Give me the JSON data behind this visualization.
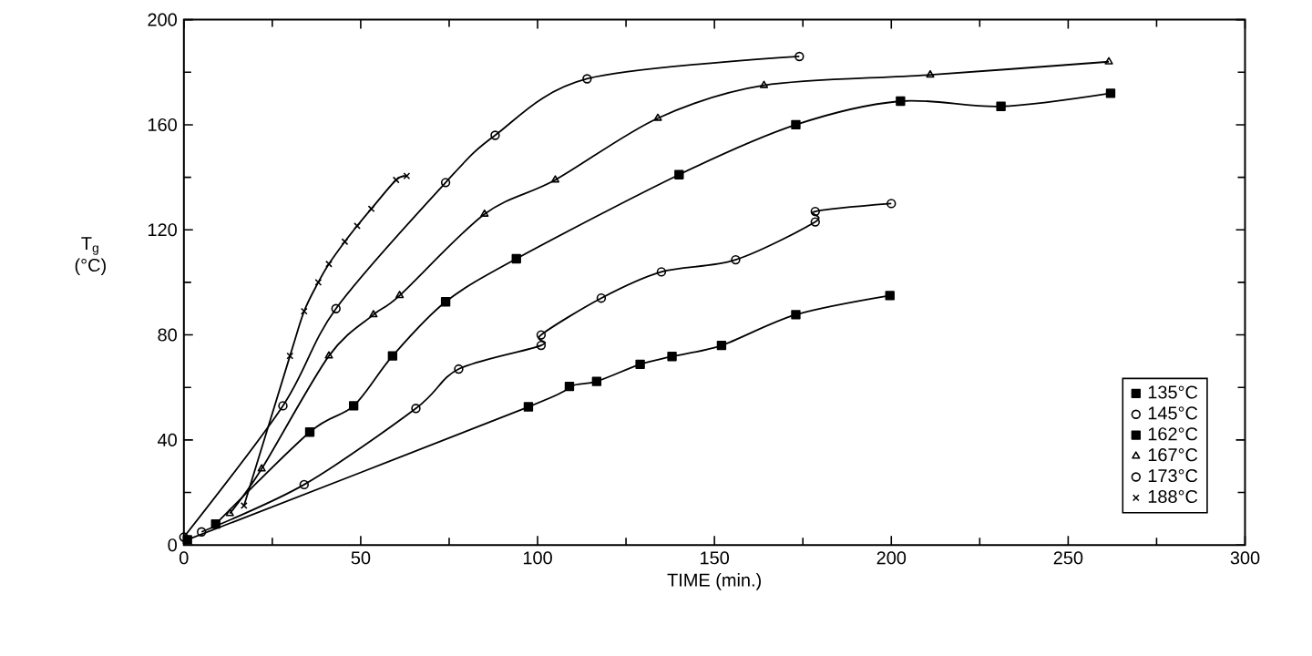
{
  "chart_data": {
    "type": "line",
    "xlabel": "TIME (min.)",
    "ylabel": "T$_{g}$ (°C)",
    "xlim": [
      0,
      300
    ],
    "ylim": [
      0,
      200
    ],
    "xticks": [
      0,
      50,
      100,
      150,
      200,
      250,
      300
    ],
    "yticks": [
      0,
      40,
      80,
      120,
      160,
      200
    ],
    "grid": false,
    "legend": "bottom right",
    "line_style": "solid",
    "series": [
      {
        "name": "135°C",
        "color": "#000000",
        "marker": "square",
        "x": [
          1,
          97.4,
          109,
          116.7,
          129,
          138,
          152,
          173,
          199.6
        ],
        "values": [
          2,
          52.6,
          60.4,
          62.3,
          68.8,
          71.8,
          76,
          87.7,
          95
        ]
      },
      {
        "name": "145°C",
        "color": "#000000",
        "marker": "circle",
        "x": [
          5,
          34,
          65.6,
          77.7,
          101,
          101,
          118,
          135,
          156,
          178.5,
          178.5,
          200
        ],
        "values": [
          5,
          23,
          52,
          67,
          76,
          80,
          94,
          104,
          108.6,
          123,
          127,
          130
        ]
      },
      {
        "name": "162°C",
        "color": "#000000",
        "marker": "square",
        "x": [
          9,
          35.6,
          48,
          59,
          74,
          94,
          140,
          173,
          202.6,
          231,
          262
        ],
        "values": [
          8,
          43,
          53,
          72,
          92.6,
          109,
          141,
          160,
          169,
          167,
          172
        ]
      },
      {
        "name": "167°C",
        "color": "#000000",
        "marker": "triangle",
        "x": [
          13,
          22,
          41,
          53.6,
          61,
          85,
          105,
          134,
          164,
          211,
          261.5
        ],
        "values": [
          12,
          29,
          72,
          87.7,
          95,
          126,
          139,
          162.5,
          175,
          179,
          184
        ]
      },
      {
        "name": "173°C",
        "color": "#000000",
        "marker": "circle",
        "x": [
          0,
          28,
          43,
          74,
          88,
          114,
          174
        ],
        "values": [
          3,
          53,
          90,
          138,
          156,
          177.5,
          186
        ]
      },
      {
        "name": "188°C",
        "color": "#000000",
        "marker": "cross",
        "x": [
          17,
          30,
          34,
          38,
          41,
          45.5,
          49,
          53,
          60,
          63
        ],
        "values": [
          15,
          72,
          89,
          100,
          107,
          115.5,
          121.5,
          128,
          139,
          140.5
        ]
      }
    ]
  }
}
